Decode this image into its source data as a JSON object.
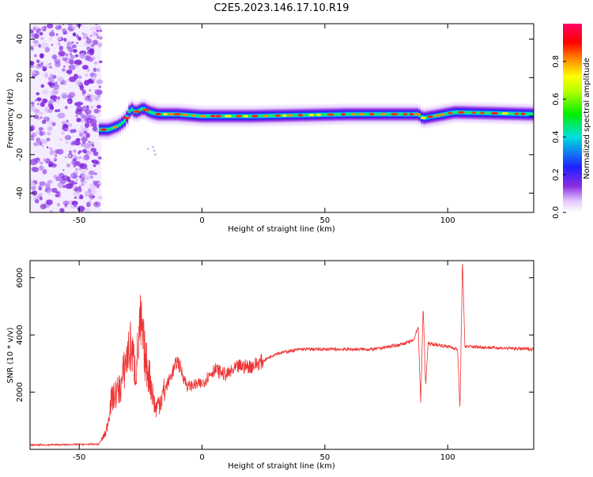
{
  "title": "C2E5.2023.146.17.10.R19",
  "chart_data": [
    {
      "type": "heatmap",
      "xlabel": "Height of straight line (km)",
      "ylabel": "Frequency (Hz)",
      "xlim": [
        -70,
        135
      ],
      "ylim": [
        -50,
        48
      ],
      "xticks": [
        -50,
        0,
        50,
        100
      ],
      "yticks": [
        -40,
        -20,
        0,
        20,
        40
      ],
      "colorbar": {
        "label": "Normalized spectral amplitude",
        "range": [
          0,
          1
        ],
        "ticks": [
          "0.0",
          "0.2",
          "0.4",
          "0.6",
          "0.8"
        ],
        "ticks_values": [
          0,
          0.2,
          0.4,
          0.6,
          0.8
        ]
      },
      "noise_region": {
        "x": [
          -70,
          -41
        ],
        "y": [
          -50,
          48
        ]
      },
      "ridge_path": [
        {
          "x": -42,
          "y": -7
        },
        {
          "x": -38,
          "y": -7
        },
        {
          "x": -34,
          "y": -5
        },
        {
          "x": -31,
          "y": -2
        },
        {
          "x": -29,
          "y": 4
        },
        {
          "x": -27,
          "y": 2
        },
        {
          "x": -24,
          "y": 4
        },
        {
          "x": -21,
          "y": 2
        },
        {
          "x": -18,
          "y": 1
        },
        {
          "x": -10,
          "y": 1
        },
        {
          "x": 0,
          "y": 0
        },
        {
          "x": 20,
          "y": 0
        },
        {
          "x": 60,
          "y": 1
        },
        {
          "x": 88,
          "y": 1
        },
        {
          "x": 90,
          "y": -1
        },
        {
          "x": 103,
          "y": 2
        },
        {
          "x": 135,
          "y": 1
        }
      ]
    },
    {
      "type": "line",
      "xlabel": "Height of straight line (km)",
      "ylabel": "SNR (10 * v/v)",
      "xlim": [
        -70,
        135
      ],
      "ylim": [
        0,
        6600
      ],
      "xticks": [
        -50,
        0,
        50,
        100
      ],
      "yticks": [
        2000,
        4000,
        6000
      ],
      "color": "#ee3333",
      "envelope": [
        {
          "x": -70,
          "y": 150
        },
        {
          "x": -42,
          "y": 180
        },
        {
          "x": -39,
          "y": 600
        },
        {
          "x": -37,
          "y": 1700
        },
        {
          "x": -33,
          "y": 2200
        },
        {
          "x": -31,
          "y": 3100
        },
        {
          "x": -29,
          "y": 3600
        },
        {
          "x": -27,
          "y": 2700
        },
        {
          "x": -25,
          "y": 4400
        },
        {
          "x": -23,
          "y": 3100
        },
        {
          "x": -21,
          "y": 2400
        },
        {
          "x": -19,
          "y": 1400
        },
        {
          "x": -16,
          "y": 1900
        },
        {
          "x": -13,
          "y": 2500
        },
        {
          "x": -10,
          "y": 3100
        },
        {
          "x": -6,
          "y": 2200
        },
        {
          "x": 0,
          "y": 2300
        },
        {
          "x": 5,
          "y": 2800
        },
        {
          "x": 10,
          "y": 2600
        },
        {
          "x": 15,
          "y": 2900
        },
        {
          "x": 20,
          "y": 2900
        },
        {
          "x": 25,
          "y": 3100
        },
        {
          "x": 30,
          "y": 3350
        },
        {
          "x": 40,
          "y": 3500
        },
        {
          "x": 50,
          "y": 3500
        },
        {
          "x": 60,
          "y": 3500
        },
        {
          "x": 70,
          "y": 3500
        },
        {
          "x": 80,
          "y": 3650
        },
        {
          "x": 86,
          "y": 3800
        },
        {
          "x": 88,
          "y": 4300
        },
        {
          "x": 89,
          "y": 1600
        },
        {
          "x": 90,
          "y": 5000
        },
        {
          "x": 91,
          "y": 2200
        },
        {
          "x": 92,
          "y": 3700
        },
        {
          "x": 100,
          "y": 3600
        },
        {
          "x": 104,
          "y": 3500
        },
        {
          "x": 105,
          "y": 1400
        },
        {
          "x": 106,
          "y": 6600
        },
        {
          "x": 107,
          "y": 3600
        },
        {
          "x": 120,
          "y": 3550
        },
        {
          "x": 135,
          "y": 3500
        }
      ]
    }
  ]
}
